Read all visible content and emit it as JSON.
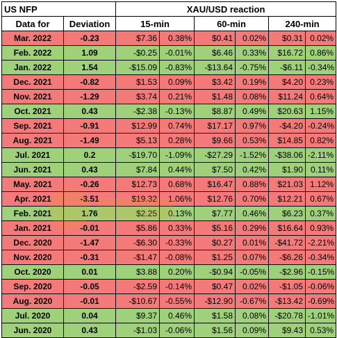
{
  "headers": {
    "us_nfp": "US NFP",
    "xau_reaction": "XAU/USD reaction",
    "data_for": "Data for",
    "deviation": "Deviation",
    "min15": "15-min",
    "min60": "60-min",
    "min240": "240-min"
  },
  "colors": {
    "negative_row": "#f47a7a",
    "positive_row": "#9fd07a"
  },
  "rows": [
    {
      "date": "Mar. 2022",
      "dev": "-0.23",
      "m15_usd": "$7.36",
      "m15_pct": "0.38%",
      "m60_usd": "$0.41",
      "m60_pct": "0.02%",
      "m240_usd": "$0.31",
      "m240_pct": "0.02%",
      "tone": "red"
    },
    {
      "date": "Feb. 2022",
      "dev": "1.09",
      "m15_usd": "-$0.25",
      "m15_pct": "-0.01%",
      "m60_usd": "$6.46",
      "m60_pct": "0.33%",
      "m240_usd": "$16.72",
      "m240_pct": "0.86%",
      "tone": "green"
    },
    {
      "date": "Jan. 2022",
      "dev": "1.54",
      "m15_usd": "-$15.09",
      "m15_pct": "-0.83%",
      "m60_usd": "-$13.64",
      "m60_pct": "-0.75%",
      "m240_usd": "-$6.11",
      "m240_pct": "-0.34%",
      "tone": "green"
    },
    {
      "date": "Dec. 2021",
      "dev": "-0.82",
      "m15_usd": "$1.53",
      "m15_pct": "0.09%",
      "m60_usd": "$3.42",
      "m60_pct": "0.19%",
      "m240_usd": "$4.20",
      "m240_pct": "0.23%",
      "tone": "red"
    },
    {
      "date": "Nov. 2021",
      "dev": "-1.29",
      "m15_usd": "$3.74",
      "m15_pct": "0.21%",
      "m60_usd": "$1.48",
      "m60_pct": "0.08%",
      "m240_usd": "$11.24",
      "m240_pct": "0.64%",
      "tone": "red"
    },
    {
      "date": "Oct. 2021",
      "dev": "0.43",
      "m15_usd": "-$2.38",
      "m15_pct": "-0.13%",
      "m60_usd": "$8.87",
      "m60_pct": "0.49%",
      "m240_usd": "$20.63",
      "m240_pct": "1.15%",
      "tone": "green"
    },
    {
      "date": "Sep. 2021",
      "dev": "-0.91",
      "m15_usd": "$12.99",
      "m15_pct": "0.74%",
      "m60_usd": "$17.17",
      "m60_pct": "0.97%",
      "m240_usd": "-$4.20",
      "m240_pct": "-0.24%",
      "tone": "red"
    },
    {
      "date": "Aug. 2021",
      "dev": "-1.49",
      "m15_usd": "$5.13",
      "m15_pct": "0.28%",
      "m60_usd": "$9.66",
      "m60_pct": "0.53%",
      "m240_usd": "$14.85",
      "m240_pct": "0.82%",
      "tone": "red"
    },
    {
      "date": "Jul. 2021",
      "dev": "0.2",
      "m15_usd": "-$19.70",
      "m15_pct": "-1.09%",
      "m60_usd": "-$27.29",
      "m60_pct": "-1.52%",
      "m240_usd": "-$38.06",
      "m240_pct": "-2.11%",
      "tone": "green"
    },
    {
      "date": "Jun. 2021",
      "dev": "0.43",
      "m15_usd": "$7.84",
      "m15_pct": "0.44%",
      "m60_usd": "$7.50",
      "m60_pct": "0.42%",
      "m240_usd": "$1.90",
      "m240_pct": "0.11%",
      "tone": "green"
    },
    {
      "date": "May. 2021",
      "dev": "-0.26",
      "m15_usd": "$12.73",
      "m15_pct": "0.68%",
      "m60_usd": "$16.47",
      "m60_pct": "0.88%",
      "m240_usd": "$21.03",
      "m240_pct": "1.12%",
      "tone": "red"
    },
    {
      "date": "Apr. 2021",
      "dev": "-3.51",
      "m15_usd": "$19.32",
      "m15_pct": "1.06%",
      "m60_usd": "$12.76",
      "m60_pct": "0.70%",
      "m240_usd": "$12.21",
      "m240_pct": "0.67%",
      "tone": "red"
    },
    {
      "date": "Feb. 2021",
      "dev": "1.76",
      "m15_usd": "$2.25",
      "m15_pct": "0.13%",
      "m60_usd": "$7.77",
      "m60_pct": "0.46%",
      "m240_usd": "$6.23",
      "m240_pct": "0.37%",
      "tone": "green"
    },
    {
      "date": "Jan. 2021",
      "dev": "-0.01",
      "m15_usd": "$5.86",
      "m15_pct": "0.33%",
      "m60_usd": "$5.16",
      "m60_pct": "0.29%",
      "m240_usd": "$16.64",
      "m240_pct": "0.93%",
      "tone": "red"
    },
    {
      "date": "Dec. 2020",
      "dev": "-1.47",
      "m15_usd": "-$6.30",
      "m15_pct": "-0.33%",
      "m60_usd": "$0.27",
      "m60_pct": "0.01%",
      "m240_usd": "-$41.72",
      "m240_pct": "-2.21%",
      "tone": "red"
    },
    {
      "date": "Nov. 2020",
      "dev": "-0.31",
      "m15_usd": "-$1.47",
      "m15_pct": "-0.08%",
      "m60_usd": "$1.25",
      "m60_pct": "0.07%",
      "m240_usd": "-$6.26",
      "m240_pct": "-0.34%",
      "tone": "red"
    },
    {
      "date": "Oct. 2020",
      "dev": "0.01",
      "m15_usd": "$3.88",
      "m15_pct": "0.20%",
      "m60_usd": "-$0.94",
      "m60_pct": "-0.05%",
      "m240_usd": "-$2.96",
      "m240_pct": "-0.15%",
      "tone": "green"
    },
    {
      "date": "Sep. 2020",
      "dev": "-0.05",
      "m15_usd": "-$2.59",
      "m15_pct": "-0.14%",
      "m60_usd": "$0.47",
      "m60_pct": "0.02%",
      "m240_usd": "-$1.05",
      "m240_pct": "-0.06%",
      "tone": "red"
    },
    {
      "date": "Aug. 2020",
      "dev": "-0.01",
      "m15_usd": "-$10.67",
      "m15_pct": "-0.55%",
      "m60_usd": "-$12.90",
      "m60_pct": "-0.67%",
      "m240_usd": "-$13.42",
      "m240_pct": "-0.69%",
      "tone": "red"
    },
    {
      "date": "Jul. 2020",
      "dev": "0.04",
      "m15_usd": "$9.37",
      "m15_pct": "0.46%",
      "m60_usd": "$1.58",
      "m60_pct": "0.08%",
      "m240_usd": "-$20.78",
      "m240_pct": "-1.01%",
      "tone": "green"
    },
    {
      "date": "Jun. 2020",
      "dev": "0.43",
      "m15_usd": "-$1.03",
      "m15_pct": "-0.06%",
      "m60_usd": "$1.56",
      "m60_pct": "0.09%",
      "m240_usd": "$9.43",
      "m240_pct": "0.53%",
      "tone": "green"
    }
  ]
}
